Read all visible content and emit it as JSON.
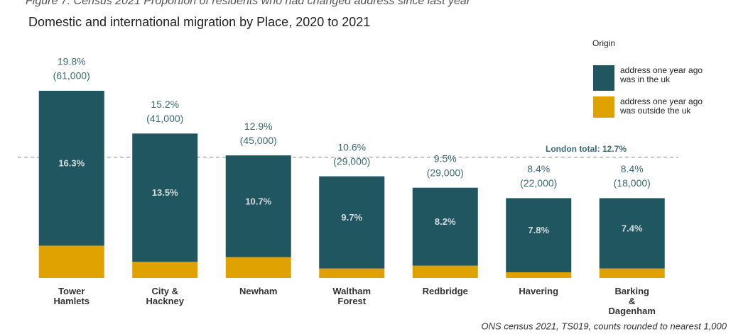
{
  "caption": "Figure 7: Census 2021 Proportion of residents who had changed address since last year",
  "chart_data": {
    "type": "stacked-bar",
    "title": "Domestic and international migration by Place, 2020 to 2021",
    "categories": [
      "Tower\nHamlets",
      "City &\nHackney",
      "Newham",
      "Waltham\nForest",
      "Redbridge",
      "Havering",
      "Barking\n&\nDagenham"
    ],
    "series": [
      {
        "name": "address one year ago was outside the uk",
        "color": "#e0a200",
        "values": [
          3.4,
          1.7,
          2.2,
          1,
          1.3,
          0.6,
          1
        ],
        "value_labels": [
          "3.4%",
          "1.7%",
          "2.2%",
          "1%",
          "1.3%",
          "0.6%",
          "1%"
        ]
      },
      {
        "name": "address one year ago was in the uk",
        "color": "#1f5660",
        "values": [
          16.3,
          13.5,
          10.7,
          9.7,
          8.2,
          7.8,
          7.4
        ],
        "value_labels": [
          "16.3%",
          "13.5%",
          "10.7%",
          "9.7%",
          "8.2%",
          "7.8%",
          "7.4%"
        ]
      }
    ],
    "totals": [
      19.8,
      15.2,
      12.9,
      10.6,
      9.5,
      8.4,
      8.4
    ],
    "total_labels": [
      "19.8%",
      "15.2%",
      "12.9%",
      "10.6%",
      "9.5%",
      "8.4%",
      "8.4%"
    ],
    "counts": [
      61000,
      41000,
      45000,
      29000,
      29000,
      22000,
      18000
    ],
    "count_labels": [
      "(61,000)",
      "(41,000)",
      "(45,000)",
      "(29,000)",
      "(29,000)",
      "(22,000)",
      "(18,000)"
    ],
    "reference": {
      "value": 12.7,
      "label": "London total: 12.7%"
    },
    "legend_title": "Origin",
    "legend_position": "top-right",
    "source": "ONS census 2021, TS019, counts rounded to nearest 1,000"
  }
}
